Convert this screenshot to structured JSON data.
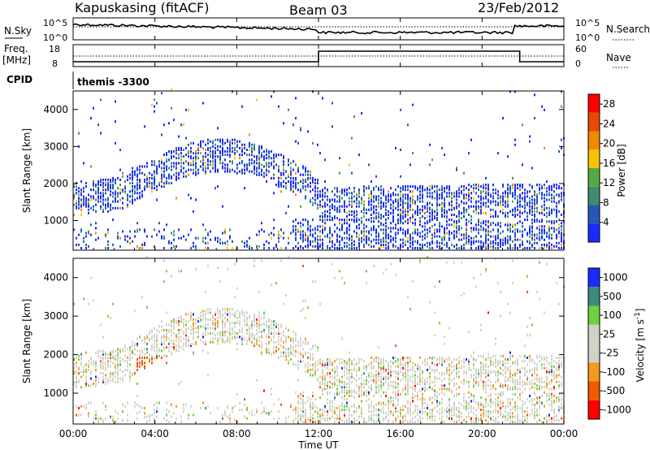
{
  "header": {
    "station": "Kapuskasing (fitACF)",
    "beam": "Beam 03",
    "date": "23/Feb/2012"
  },
  "colors": {
    "power_scale": [
      "#1b2bff",
      "#2557b6",
      "#3f8d6e",
      "#58a842",
      "#f5c400",
      "#f08a00",
      "#e84a00",
      "#ff0000"
    ],
    "velocity_scale": [
      "#ff0000",
      "#f05a00",
      "#f49a20",
      "#d2d2c8",
      "#d2d2c8",
      "#6fd040",
      "#3d8a80",
      "#1b2bff"
    ],
    "ground_scatter": "#b8b8b0"
  },
  "panel_sky": {
    "left_label": "N.Sky",
    "left_ticks": [
      "10^5",
      "10^0"
    ],
    "right_ticks": [
      "10^5",
      "10^0"
    ],
    "right_label": "N.Search"
  },
  "panel_freq": {
    "left_label_1": "Freq.",
    "left_label_2": "[MHz]",
    "left_ticks": [
      "18",
      "8"
    ],
    "right_ticks": [
      "60",
      "0"
    ],
    "right_label": "Nave"
  },
  "cpid": {
    "label": "CPID",
    "value": "themis -3300"
  },
  "chart_data": [
    {
      "type": "heatmap",
      "name": "power",
      "ylabel": "Slant Range [km]",
      "yticks": [
        "1000",
        "2000",
        "3000",
        "4000"
      ],
      "ylim": [
        200,
        4500
      ],
      "xlim": [
        "00:00",
        "24:00"
      ],
      "colorbar_label": "Power [dB]",
      "colorbar_ticks": [
        "4",
        "8",
        "12",
        "16",
        "20",
        "24",
        "28"
      ],
      "colorbar_range": [
        0,
        30
      ]
    },
    {
      "type": "heatmap",
      "name": "velocity",
      "ylabel": "Slant Range [km]",
      "yticks": [
        "1000",
        "2000",
        "3000",
        "4000"
      ],
      "ylim": [
        200,
        4500
      ],
      "xlim": [
        "00:00",
        "24:00"
      ],
      "colorbar_label": "Velocity [m s^-1]",
      "colorbar_ticks": [
        "1000",
        "500",
        "100",
        "25",
        "-25",
        "-100",
        "-500",
        "-1000"
      ]
    }
  ],
  "xaxis": {
    "ticks": [
      "00:00",
      "04:00",
      "08:00",
      "12:00",
      "16:00",
      "20:00",
      "00:00"
    ],
    "label": "Time UT"
  }
}
